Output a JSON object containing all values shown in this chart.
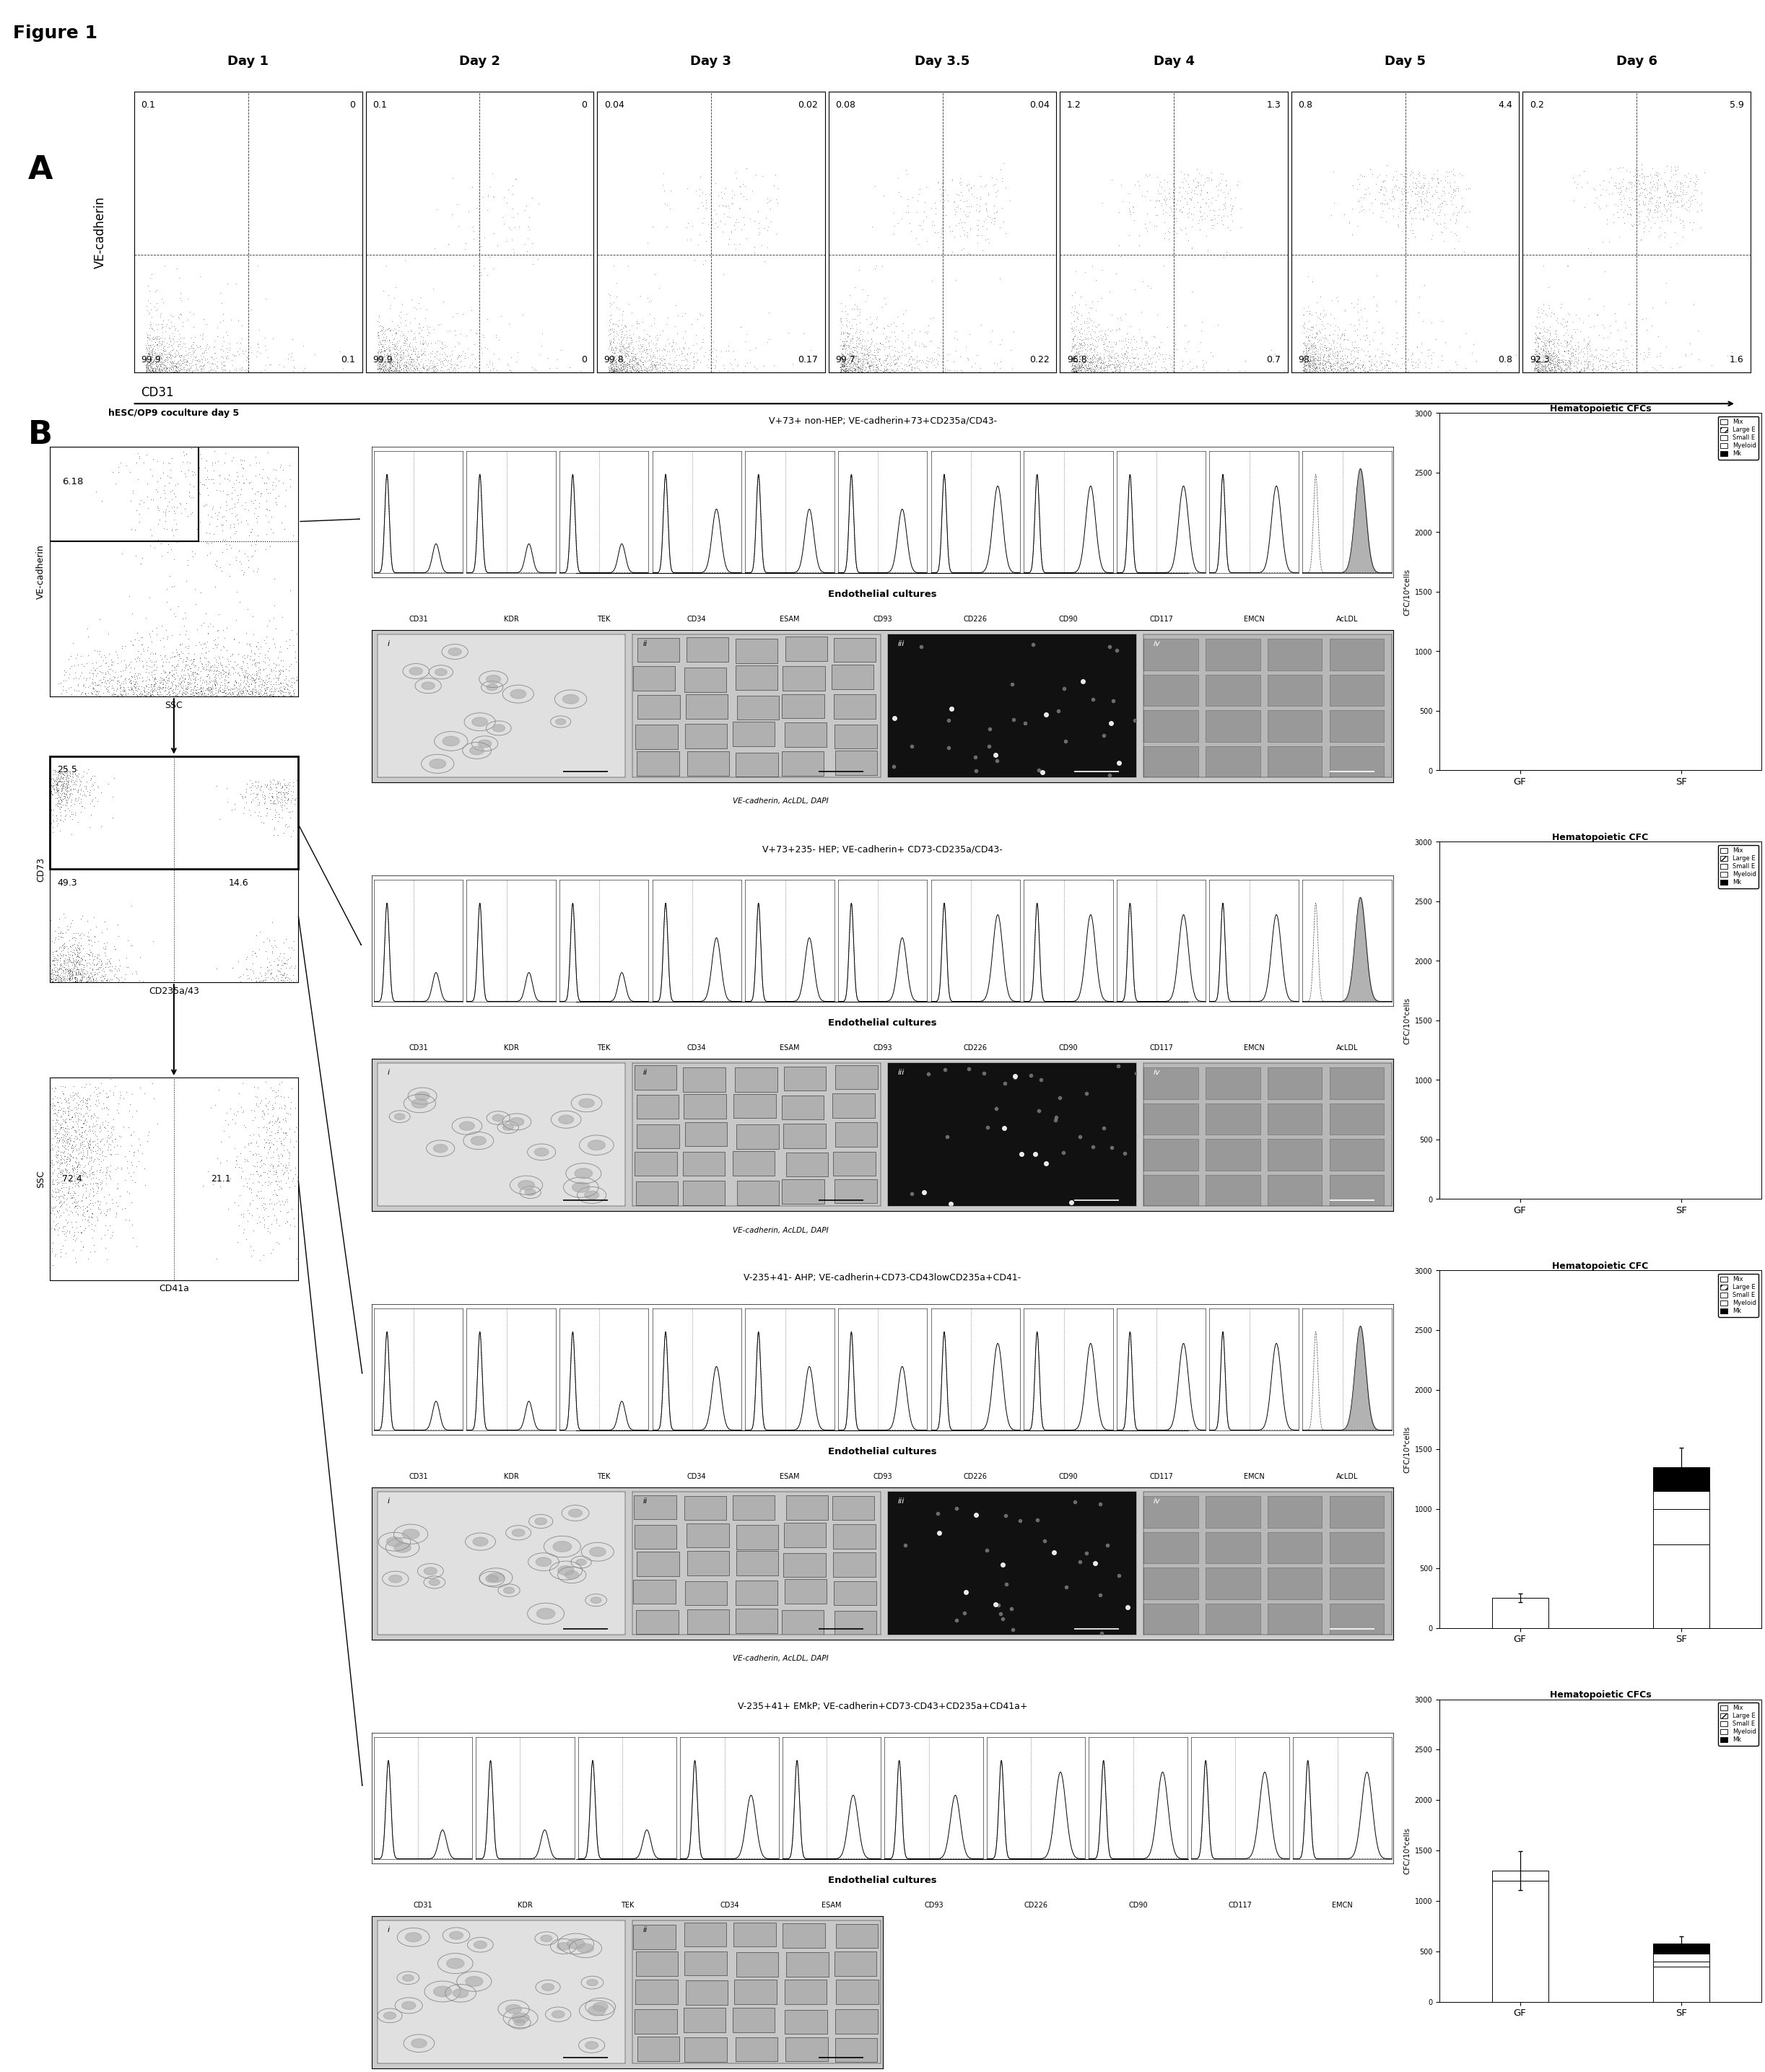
{
  "figure_label": "Figure 1",
  "days": [
    "Day 1",
    "Day 2",
    "Day 3",
    "Day 3.5",
    "Day 4",
    "Day 5",
    "Day 6"
  ],
  "panel_A_quadrant_values": [
    [
      "0.1",
      "0",
      "99.9",
      "0.1"
    ],
    [
      "0.1",
      "0",
      "99.9",
      "0"
    ],
    [
      "0.04",
      "0.02",
      "99.8",
      "0.17"
    ],
    [
      "0.08",
      "0.04",
      "99.7",
      "0.22"
    ],
    [
      "1.2",
      "1.3",
      "96.8",
      "0.7"
    ],
    [
      "0.8",
      "4.4",
      "98",
      "0.8"
    ],
    [
      "0.2",
      "5.9",
      "92.3",
      "1.6"
    ]
  ],
  "y_axis_A": "VE-cadherin",
  "x_axis_A": "CD31",
  "populations": [
    {
      "label": "V+73+ non-HEP; VE-cadherin+73+CD235a/CD43-",
      "bar_title": "Hematopoietic CFCs",
      "markers": [
        "CD31",
        "KDR",
        "TEK",
        "CD34",
        "ESAM",
        "CD93",
        "CD226",
        "CD90",
        "CD117",
        "EMCN",
        "AcLDL"
      ],
      "n_micro": 4,
      "has_caption": true,
      "caption": "VE-cadherin, AcLDL, DAPI",
      "bar_ylim": [
        0,
        3000
      ],
      "bar_yticks": [
        0,
        500,
        1000,
        1500,
        2000,
        2500,
        3000
      ],
      "has_bars": false
    },
    {
      "label": "V+73+235- HEP; VE-cadherin+ CD73-CD235a/CD43-",
      "bar_title": "Hematopoietic CFC",
      "markers": [
        "CD31",
        "KDR",
        "TEK",
        "CD34",
        "ESAM",
        "CD93",
        "CD226",
        "CD90",
        "CD117",
        "EMCN",
        "AcLDL"
      ],
      "n_micro": 4,
      "has_caption": true,
      "caption": "VE-cadherin, AcLDL, DAPI",
      "bar_ylim": [
        0,
        3000
      ],
      "bar_yticks": [
        0,
        500,
        1000,
        1500,
        2000,
        2500,
        3000
      ],
      "has_bars": false
    },
    {
      "label": "V-235+41- AHP; VE-cadherin+CD73-CD43lowCD235a+CD41-",
      "bar_title": "Hematopoietic CFC",
      "markers": [
        "CD31",
        "KDR",
        "TEK",
        "CD34",
        "ESAM",
        "CD93",
        "CD226",
        "CD90",
        "CD117",
        "EMCN",
        "AcLDL"
      ],
      "n_micro": 4,
      "has_caption": true,
      "caption": "VE-cadherin, AcLDL, DAPI",
      "bar_ylim": [
        0,
        3000
      ],
      "bar_yticks": [
        0,
        500,
        1000,
        1500,
        2000,
        2500,
        3000
      ],
      "has_bars": true,
      "bar_gf": [
        0,
        0,
        0,
        250,
        0
      ],
      "bar_sf": [
        700,
        0,
        300,
        150,
        200
      ]
    },
    {
      "label": "V-235+41+ EMkP; VE-cadherin+CD73-CD43+CD235a+CD41a+",
      "bar_title": "Hematopoietic CFCs",
      "markers": [
        "CD31",
        "KDR",
        "TEK",
        "CD34",
        "ESAM",
        "CD93",
        "CD226",
        "CD90",
        "CD117",
        "EMCN"
      ],
      "n_micro": 2,
      "has_caption": false,
      "caption": "",
      "bar_ylim": [
        0,
        3000
      ],
      "bar_yticks": [
        0,
        500,
        1000,
        1500,
        2000,
        2500,
        3000
      ],
      "has_bars": true,
      "bar_gf": [
        1200,
        0,
        0,
        100,
        0
      ],
      "bar_sf": [
        350,
        0,
        50,
        80,
        100
      ]
    }
  ],
  "legend_items": [
    "Mix",
    "Large E",
    "Small E",
    "Myeloid",
    "Mk"
  ],
  "hatch_list": [
    "",
    "///",
    "",
    "ZZ",
    ""
  ],
  "fc_list": [
    "white",
    "white",
    "white",
    "white",
    "black"
  ],
  "left_dot_value": "6.18",
  "cd73_values": [
    "25.5",
    "49.3",
    "14.6"
  ],
  "cd41_values": [
    "72.4",
    "21.1"
  ]
}
